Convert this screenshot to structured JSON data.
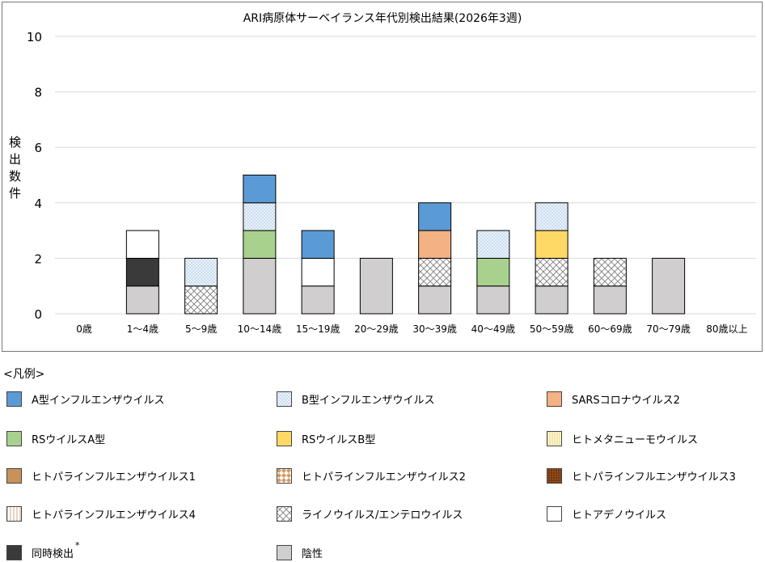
{
  "chart_data": {
    "type": "bar",
    "stacked": true,
    "title": "ARI病原体サーベイランス年代別検出結果(2026年3週)",
    "ylabel": "検出数件",
    "ylabel_chars": [
      "検",
      "出",
      "数",
      "件"
    ],
    "ylim": [
      0,
      10
    ],
    "yticks": [
      0,
      2,
      4,
      6,
      8,
      10
    ],
    "grid": true,
    "categories": [
      "0歳",
      "1～4歳",
      "5～9歳",
      "10～14歳",
      "15～19歳",
      "20～29歳",
      "30～39歳",
      "40～49歳",
      "50～59歳",
      "60～69歳",
      "70～79歳",
      "80歳以上"
    ],
    "series": [
      {
        "name": "陰性",
        "key": "neg",
        "values": [
          0,
          1,
          0,
          2,
          1,
          2,
          1,
          1,
          1,
          1,
          2,
          0
        ]
      },
      {
        "name": "ライノウイルス/エンテロウイルス",
        "key": "rhino",
        "values": [
          0,
          0,
          1,
          0,
          0,
          0,
          1,
          0,
          1,
          1,
          0,
          0
        ]
      },
      {
        "name": "同時検出",
        "key": "co",
        "values": [
          0,
          1,
          0,
          0,
          0,
          0,
          0,
          0,
          0,
          0,
          0,
          0
        ]
      },
      {
        "name": "RSウイルスA型",
        "key": "rsa",
        "values": [
          0,
          0,
          0,
          1,
          0,
          0,
          0,
          1,
          0,
          0,
          0,
          0
        ]
      },
      {
        "name": "RSウイルスB型",
        "key": "rsb",
        "values": [
          0,
          0,
          0,
          0,
          0,
          0,
          0,
          0,
          1,
          0,
          0,
          0
        ]
      },
      {
        "name": "ヒトアデノウイルス",
        "key": "adeno",
        "values": [
          0,
          1,
          0,
          0,
          1,
          0,
          0,
          0,
          0,
          0,
          0,
          0
        ]
      },
      {
        "name": "SARSコロナウイルス2",
        "key": "sars",
        "values": [
          0,
          0,
          0,
          0,
          0,
          0,
          1,
          0,
          0,
          0,
          0,
          0
        ]
      },
      {
        "name": "B型インフルエンザウイルス",
        "key": "fluB",
        "values": [
          0,
          0,
          1,
          1,
          0,
          0,
          0,
          1,
          1,
          0,
          0,
          0
        ]
      },
      {
        "name": "A型インフルエンザウイルス",
        "key": "fluA",
        "values": [
          0,
          0,
          0,
          1,
          1,
          0,
          1,
          0,
          0,
          0,
          0,
          0
        ]
      }
    ],
    "legend_title": "<凡例>",
    "legend": [
      {
        "name": "A型インフルエンザウイルス",
        "key": "fluA"
      },
      {
        "name": "B型インフルエンザウイルス",
        "key": "fluB"
      },
      {
        "name": "SARSコロナウイルス2",
        "key": "sars"
      },
      {
        "name": "RSウイルスA型",
        "key": "rsa"
      },
      {
        "name": "RSウイルスB型",
        "key": "rsb"
      },
      {
        "name": "ヒトメタニューモウイルス",
        "key": "hmpv"
      },
      {
        "name": "ヒトパラインフルエンザウイルス1",
        "key": "pi1"
      },
      {
        "name": "ヒトパラインフルエンザウイルス2",
        "key": "pi2"
      },
      {
        "name": "ヒトパラインフルエンザウイルス3",
        "key": "pi3"
      },
      {
        "name": "ヒトパラインフルエンザウイルス4",
        "key": "pi4"
      },
      {
        "name": "ライノウイルス/エンテロウイルス",
        "key": "rhino"
      },
      {
        "name": "ヒトアデノウイルス",
        "key": "adeno"
      },
      {
        "name": "同時検出",
        "key": "co",
        "note": "*"
      },
      {
        "name": "陰性",
        "key": "neg"
      }
    ],
    "colors": {
      "fluA": "#5b9bd5",
      "sars": "#f4b183",
      "rsa": "#a9d18e",
      "rsb": "#ffd966",
      "pi1": "#c8915a",
      "adeno": "#ffffff",
      "co": "#3a3a3a",
      "neg": "#d0cece"
    }
  }
}
